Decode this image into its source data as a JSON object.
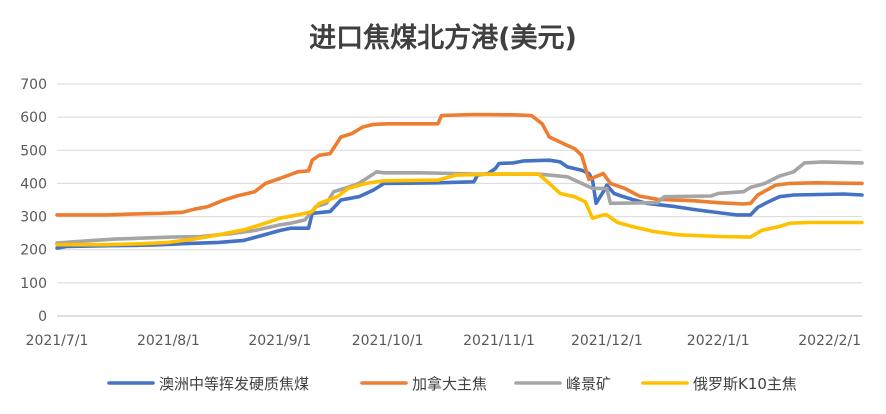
{
  "chart_data": {
    "type": "line",
    "title": "进口焦煤北方港(美元)",
    "xlabel": "",
    "ylabel": "",
    "ylim": [
      0,
      700
    ],
    "yticks": [
      0,
      100,
      200,
      300,
      400,
      500,
      600,
      700
    ],
    "xrange": [
      "2021-07-01",
      "2022-02-10"
    ],
    "xticks": [
      {
        "date": "2021-07-01",
        "label": "2021/7/1"
      },
      {
        "date": "2021-08-01",
        "label": "2021/8/1"
      },
      {
        "date": "2021-09-01",
        "label": "2021/9/1"
      },
      {
        "date": "2021-10-01",
        "label": "2021/10/1"
      },
      {
        "date": "2021-11-01",
        "label": "2021/11/1"
      },
      {
        "date": "2021-12-01",
        "label": "2021/12/1"
      },
      {
        "date": "2022-01-01",
        "label": "2022/1/1"
      },
      {
        "date": "2022-02-01",
        "label": "2022/2/1"
      }
    ],
    "grid": true,
    "legend_position": "bottom",
    "series": [
      {
        "name": "澳洲中等挥发硬质焦煤",
        "color": "#4472c4",
        "points": [
          [
            "2021-07-01",
            205
          ],
          [
            "2021-07-04",
            210
          ],
          [
            "2021-07-15",
            212
          ],
          [
            "2021-07-22",
            213
          ],
          [
            "2021-07-30",
            215
          ],
          [
            "2021-08-05",
            218
          ],
          [
            "2021-08-15",
            222
          ],
          [
            "2021-08-22",
            228
          ],
          [
            "2021-08-26",
            240
          ],
          [
            "2021-09-01",
            258
          ],
          [
            "2021-09-04",
            265
          ],
          [
            "2021-09-09",
            265
          ],
          [
            "2021-09-10",
            310
          ],
          [
            "2021-09-15",
            315
          ],
          [
            "2021-09-18",
            350
          ],
          [
            "2021-09-23",
            360
          ],
          [
            "2021-09-27",
            380
          ],
          [
            "2021-09-30",
            400
          ],
          [
            "2021-10-15",
            402
          ],
          [
            "2021-10-25",
            405
          ],
          [
            "2021-10-26",
            425
          ],
          [
            "2021-10-29",
            430
          ],
          [
            "2021-10-31",
            445
          ],
          [
            "2021-11-01",
            460
          ],
          [
            "2021-11-05",
            462
          ],
          [
            "2021-11-08",
            468
          ],
          [
            "2021-11-15",
            470
          ],
          [
            "2021-11-18",
            465
          ],
          [
            "2021-11-20",
            450
          ],
          [
            "2021-11-24",
            440
          ],
          [
            "2021-11-26",
            430
          ],
          [
            "2021-11-27",
            410
          ],
          [
            "2021-11-28",
            340
          ],
          [
            "2021-11-30",
            375
          ],
          [
            "2021-12-01",
            395
          ],
          [
            "2021-12-03",
            370
          ],
          [
            "2021-12-05",
            362
          ],
          [
            "2021-12-08",
            352
          ],
          [
            "2021-12-12",
            340
          ],
          [
            "2021-12-20",
            330
          ],
          [
            "2021-12-26",
            320
          ],
          [
            "2022-01-01",
            312
          ],
          [
            "2022-01-06",
            305
          ],
          [
            "2022-01-10",
            305
          ],
          [
            "2022-01-12",
            328
          ],
          [
            "2022-01-15",
            345
          ],
          [
            "2022-01-18",
            360
          ],
          [
            "2022-01-22",
            365
          ],
          [
            "2022-02-05",
            368
          ],
          [
            "2022-02-10",
            365
          ]
        ]
      },
      {
        "name": "加拿大主焦",
        "color": "#ed7d31",
        "points": [
          [
            "2021-07-01",
            305
          ],
          [
            "2021-07-15",
            305
          ],
          [
            "2021-07-23",
            308
          ],
          [
            "2021-07-30",
            310
          ],
          [
            "2021-08-05",
            313
          ],
          [
            "2021-08-08",
            322
          ],
          [
            "2021-08-12",
            330
          ],
          [
            "2021-08-16",
            348
          ],
          [
            "2021-08-20",
            362
          ],
          [
            "2021-08-25",
            375
          ],
          [
            "2021-08-28",
            400
          ],
          [
            "2021-09-01",
            415
          ],
          [
            "2021-09-06",
            435
          ],
          [
            "2021-09-09",
            438
          ],
          [
            "2021-09-10",
            470
          ],
          [
            "2021-09-12",
            485
          ],
          [
            "2021-09-15",
            490
          ],
          [
            "2021-09-18",
            540
          ],
          [
            "2021-09-21",
            550
          ],
          [
            "2021-09-24",
            570
          ],
          [
            "2021-09-27",
            578
          ],
          [
            "2021-10-01",
            580
          ],
          [
            "2021-10-15",
            580
          ],
          [
            "2021-10-16",
            605
          ],
          [
            "2021-10-25",
            608
          ],
          [
            "2021-11-05",
            607
          ],
          [
            "2021-11-10",
            605
          ],
          [
            "2021-11-13",
            580
          ],
          [
            "2021-11-15",
            540
          ],
          [
            "2021-11-19",
            520
          ],
          [
            "2021-11-22",
            505
          ],
          [
            "2021-11-24",
            485
          ],
          [
            "2021-11-26",
            412
          ],
          [
            "2021-11-29",
            425
          ],
          [
            "2021-11-30",
            430
          ],
          [
            "2021-12-02",
            400
          ],
          [
            "2021-12-06",
            385
          ],
          [
            "2021-12-10",
            362
          ],
          [
            "2021-12-15",
            352
          ],
          [
            "2021-12-25",
            348
          ],
          [
            "2022-01-01",
            342
          ],
          [
            "2022-01-08",
            338
          ],
          [
            "2022-01-10",
            340
          ],
          [
            "2022-01-12",
            365
          ],
          [
            "2022-01-17",
            395
          ],
          [
            "2022-01-21",
            400
          ],
          [
            "2022-01-28",
            402
          ],
          [
            "2022-02-10",
            400
          ]
        ]
      },
      {
        "name": "峰景矿",
        "color": "#a5a5a5",
        "points": [
          [
            "2021-07-01",
            220
          ],
          [
            "2021-07-07",
            225
          ],
          [
            "2021-07-17",
            232
          ],
          [
            "2021-07-25",
            235
          ],
          [
            "2021-08-02",
            238
          ],
          [
            "2021-08-10",
            240
          ],
          [
            "2021-08-18",
            248
          ],
          [
            "2021-08-25",
            258
          ],
          [
            "2021-09-01",
            275
          ],
          [
            "2021-09-04",
            280
          ],
          [
            "2021-09-08",
            290
          ],
          [
            "2021-09-11",
            330
          ],
          [
            "2021-09-14",
            340
          ],
          [
            "2021-09-16",
            375
          ],
          [
            "2021-09-19",
            385
          ],
          [
            "2021-09-23",
            400
          ],
          [
            "2021-09-28",
            435
          ],
          [
            "2021-09-30",
            432
          ],
          [
            "2021-10-10",
            432
          ],
          [
            "2021-10-20",
            430
          ],
          [
            "2021-10-25",
            428
          ],
          [
            "2021-11-01",
            428
          ],
          [
            "2021-11-12",
            428
          ],
          [
            "2021-11-20",
            420
          ],
          [
            "2021-11-24",
            400
          ],
          [
            "2021-11-27",
            385
          ],
          [
            "2021-11-30",
            385
          ],
          [
            "2021-12-01",
            385
          ],
          [
            "2021-12-02",
            340
          ],
          [
            "2021-12-15",
            342
          ],
          [
            "2021-12-17",
            360
          ],
          [
            "2021-12-30",
            362
          ],
          [
            "2022-01-01",
            370
          ],
          [
            "2022-01-08",
            375
          ],
          [
            "2022-01-10",
            388
          ],
          [
            "2022-01-14",
            400
          ],
          [
            "2022-01-18",
            422
          ],
          [
            "2022-01-22",
            435
          ],
          [
            "2022-01-25",
            462
          ],
          [
            "2022-01-30",
            465
          ],
          [
            "2022-02-10",
            462
          ]
        ]
      },
      {
        "name": "俄罗斯K10主焦",
        "color": "#ffc000",
        "points": [
          [
            "2021-07-01",
            215
          ],
          [
            "2021-07-15",
            215
          ],
          [
            "2021-07-25",
            218
          ],
          [
            "2021-08-01",
            222
          ],
          [
            "2021-08-08",
            232
          ],
          [
            "2021-08-15",
            245
          ],
          [
            "2021-08-22",
            260
          ],
          [
            "2021-08-28",
            280
          ],
          [
            "2021-09-01",
            295
          ],
          [
            "2021-09-06",
            305
          ],
          [
            "2021-09-10",
            315
          ],
          [
            "2021-09-12",
            340
          ],
          [
            "2021-09-17",
            360
          ],
          [
            "2021-09-20",
            385
          ],
          [
            "2021-09-25",
            400
          ],
          [
            "2021-09-30",
            408
          ],
          [
            "2021-10-15",
            410
          ],
          [
            "2021-10-20",
            425
          ],
          [
            "2021-11-01",
            428
          ],
          [
            "2021-11-12",
            428
          ],
          [
            "2021-11-15",
            400
          ],
          [
            "2021-11-18",
            370
          ],
          [
            "2021-11-22",
            360
          ],
          [
            "2021-11-25",
            345
          ],
          [
            "2021-11-27",
            295
          ],
          [
            "2021-11-30",
            305
          ],
          [
            "2021-12-01",
            305
          ],
          [
            "2021-12-04",
            282
          ],
          [
            "2021-12-08",
            270
          ],
          [
            "2021-12-14",
            255
          ],
          [
            "2021-12-21",
            245
          ],
          [
            "2022-01-01",
            240
          ],
          [
            "2022-01-10",
            238
          ],
          [
            "2022-01-13",
            258
          ],
          [
            "2022-01-18",
            270
          ],
          [
            "2022-01-21",
            280
          ],
          [
            "2022-01-26",
            282
          ],
          [
            "2022-02-10",
            282
          ]
        ]
      }
    ]
  }
}
